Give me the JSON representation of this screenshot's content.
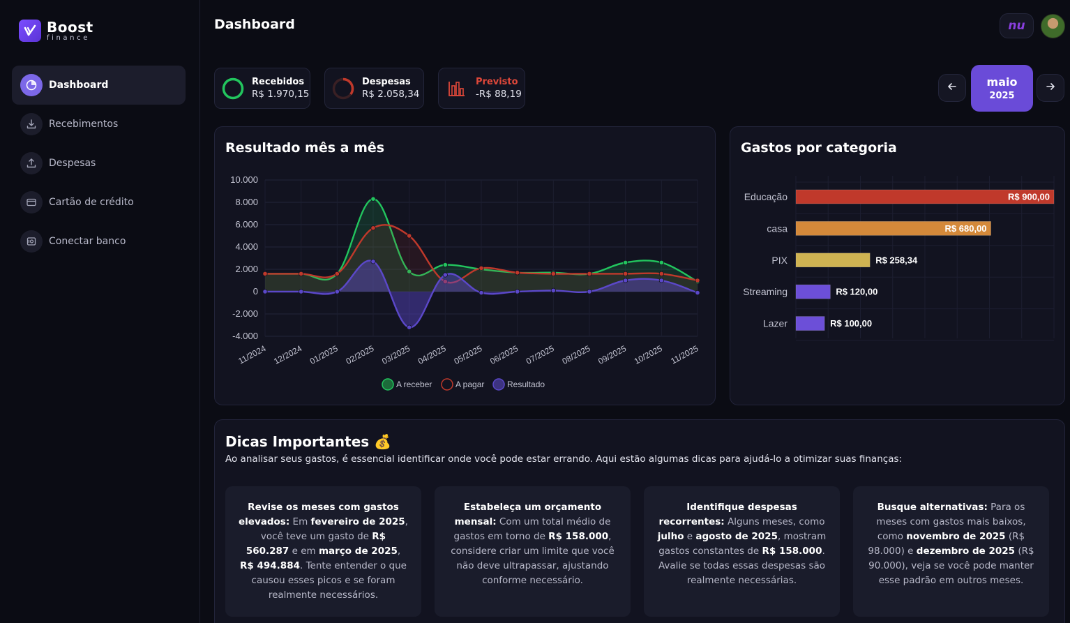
{
  "app": {
    "name": "Boost",
    "tagline": "finance"
  },
  "sidebar": {
    "items": [
      {
        "label": "Dashboard",
        "icon": "dashboard-icon",
        "active": true
      },
      {
        "label": "Recebimentos",
        "icon": "download-icon"
      },
      {
        "label": "Despesas",
        "icon": "upload-icon"
      },
      {
        "label": "Cartão de crédito",
        "icon": "credit-card-icon"
      },
      {
        "label": "Conectar banco",
        "icon": "bank-safe-icon"
      }
    ]
  },
  "header": {
    "title": "Dashboard",
    "bank_badge": "nu"
  },
  "summary": {
    "received": {
      "label": "Recebidos",
      "value": "R$ 1.970,15",
      "color": "#22c55e",
      "progress": 1.0
    },
    "expenses": {
      "label": "Despesas",
      "value": "R$ 2.058,34",
      "color": "#c0392b",
      "progress": 0.35
    },
    "forecast": {
      "label": "Previsto",
      "value": "-R$ 88,19",
      "color": "#e0483a"
    }
  },
  "month_selector": {
    "month": "maio",
    "year": "2025"
  },
  "line_chart": {
    "title": "Resultado mês a mês",
    "legend": [
      "A receber",
      "A pagar",
      "Resultado"
    ]
  },
  "bar_chart": {
    "title": "Gastos por categoria"
  },
  "chart_data": [
    {
      "type": "line",
      "title": "Resultado mês a mês",
      "x": [
        "11/2024",
        "12/2024",
        "01/2025",
        "02/2025",
        "03/2025",
        "04/2025",
        "05/2025",
        "06/2025",
        "07/2025",
        "08/2025",
        "09/2025",
        "10/2025",
        "11/2025"
      ],
      "series": [
        {
          "name": "A receber",
          "color": "#22c55e",
          "values": [
            1600,
            1600,
            1600,
            8300,
            1800,
            2400,
            2000,
            1700,
            1700,
            1600,
            2600,
            2600,
            900
          ]
        },
        {
          "name": "A pagar",
          "color": "#c0392b",
          "values": [
            1600,
            1600,
            1600,
            5700,
            5000,
            900,
            2100,
            1700,
            1600,
            1600,
            1600,
            1600,
            1000
          ]
        },
        {
          "name": "Resultado",
          "color": "#5b48c9",
          "values": [
            0,
            0,
            0,
            2700,
            -3200,
            1500,
            -100,
            0,
            100,
            0,
            1000,
            1000,
            -100
          ]
        }
      ],
      "yticks": [
        "10.000",
        "8.000",
        "6.000",
        "4.000",
        "2.000",
        "0",
        "-2.000",
        "-4.000"
      ],
      "ylim": [
        -4000,
        10000
      ],
      "grid": true,
      "legend_position": "bottom"
    },
    {
      "type": "bar",
      "orientation": "horizontal",
      "title": "Gastos por categoria",
      "categories": [
        "Educação",
        "casa",
        "PIX",
        "Streaming",
        "Lazer"
      ],
      "values": [
        900,
        680,
        258.34,
        120,
        100
      ],
      "labels": [
        "R$ 900,00",
        "R$ 680,00",
        "R$ 258,34",
        "R$ 120,00",
        "R$ 100,00"
      ],
      "colors": [
        "#c0392b",
        "#d4893a",
        "#cfb352",
        "#6c4fd8",
        "#6c4fd8"
      ],
      "xlim": [
        0,
        900
      ]
    }
  ],
  "tips": {
    "title": "Dicas Importantes 💰",
    "intro": "Ao analisar seus gastos, é essencial identificar onde você pode estar errando. Aqui estão algumas dicas para ajudá-lo a otimizar suas finanças:",
    "cards": [
      [
        {
          "t": "Revise os meses com gastos elevados:",
          "b": true
        },
        {
          "t": " Em "
        },
        {
          "t": "fevereiro de 2025",
          "b": true
        },
        {
          "t": ", você teve um gasto de "
        },
        {
          "t": "R$ 560.287",
          "b": true
        },
        {
          "t": " e em "
        },
        {
          "t": "março de 2025",
          "b": true
        },
        {
          "t": ", "
        },
        {
          "t": "R$ 494.884",
          "b": true
        },
        {
          "t": ". Tente entender o que causou esses picos e se foram realmente necessários."
        }
      ],
      [
        {
          "t": "Estabeleça um orçamento mensal:",
          "b": true
        },
        {
          "t": " Com um total médio de gastos em torno de "
        },
        {
          "t": "R$ 158.000",
          "b": true
        },
        {
          "t": ", considere criar um limite que você não deve ultrapassar, ajustando conforme necessário."
        }
      ],
      [
        {
          "t": "Identifique despesas recorrentes:",
          "b": true
        },
        {
          "t": " Alguns meses, como "
        },
        {
          "t": "julho",
          "b": true
        },
        {
          "t": " e "
        },
        {
          "t": "agosto de 2025",
          "b": true
        },
        {
          "t": ", mostram gastos constantes de "
        },
        {
          "t": "R$ 158.000",
          "b": true
        },
        {
          "t": ". Avalie se todas essas despesas são realmente necessárias."
        }
      ],
      [
        {
          "t": "Busque alternativas:",
          "b": true
        },
        {
          "t": " Para os meses com gastos mais baixos, como "
        },
        {
          "t": "novembro de 2025",
          "b": true
        },
        {
          "t": " (R$ 98.000) e "
        },
        {
          "t": "dezembro de 2025",
          "b": true
        },
        {
          "t": " (R$ 90.000), veja se você pode manter esse padrão em outros meses."
        }
      ]
    ]
  }
}
